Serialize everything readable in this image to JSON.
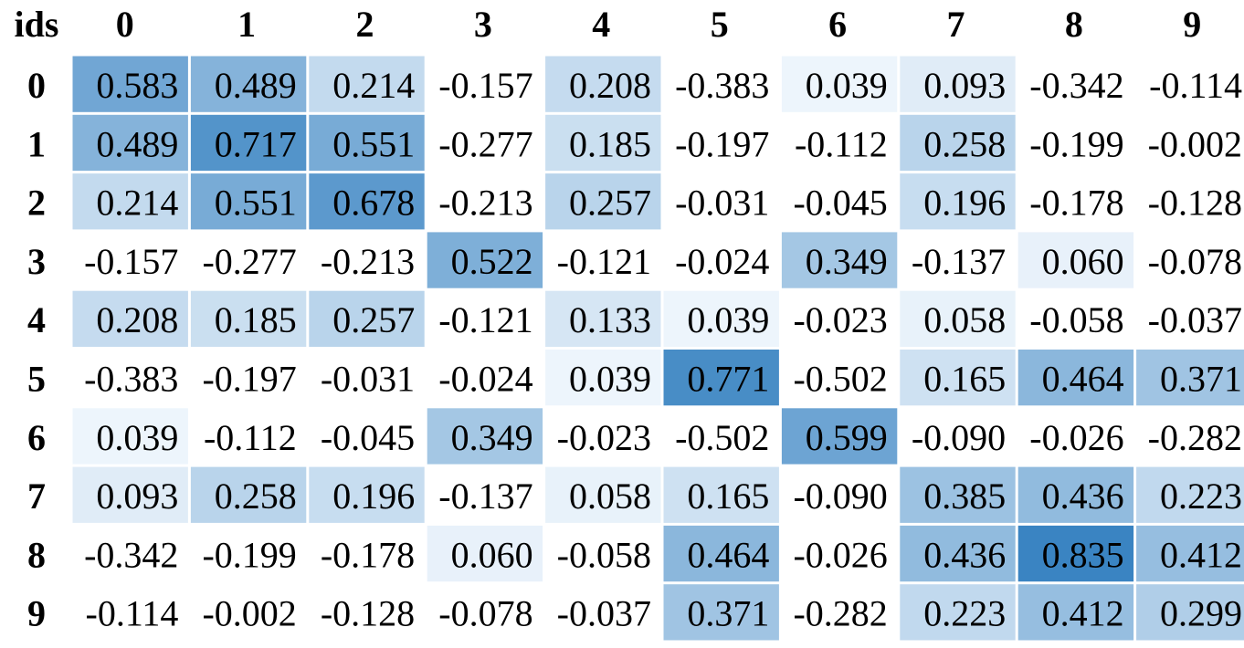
{
  "chart_data": {
    "type": "heatmap",
    "corner_label": "ids",
    "columns": [
      "0",
      "1",
      "2",
      "3",
      "4",
      "5",
      "6",
      "7",
      "8",
      "9"
    ],
    "rows": [
      "0",
      "1",
      "2",
      "3",
      "4",
      "5",
      "6",
      "7",
      "8",
      "9"
    ],
    "values": [
      [
        "0.583",
        "0.489",
        "0.214",
        "-0.157",
        "0.208",
        "-0.383",
        "0.039",
        "0.093",
        "-0.342",
        "-0.114"
      ],
      [
        "0.489",
        "0.717",
        "0.551",
        "-0.277",
        "0.185",
        "-0.197",
        "-0.112",
        "0.258",
        "-0.199",
        "-0.002"
      ],
      [
        "0.214",
        "0.551",
        "0.678",
        "-0.213",
        "0.257",
        "-0.031",
        "-0.045",
        "0.196",
        "-0.178",
        "-0.128"
      ],
      [
        "-0.157",
        "-0.277",
        "-0.213",
        "0.522",
        "-0.121",
        "-0.024",
        "0.349",
        "-0.137",
        "0.060",
        "-0.078"
      ],
      [
        "0.208",
        "0.185",
        "0.257",
        "-0.121",
        "0.133",
        "0.039",
        "-0.023",
        "0.058",
        "-0.058",
        "-0.037"
      ],
      [
        "-0.383",
        "-0.197",
        "-0.031",
        "-0.024",
        "0.039",
        "0.771",
        "-0.502",
        "0.165",
        "0.464",
        "0.371"
      ],
      [
        "0.039",
        "-0.112",
        "-0.045",
        "0.349",
        "-0.023",
        "-0.502",
        "0.599",
        "-0.090",
        "-0.026",
        "-0.282"
      ],
      [
        "0.093",
        "0.258",
        "0.196",
        "-0.137",
        "0.058",
        "0.165",
        "-0.090",
        "0.385",
        "0.436",
        "0.223"
      ],
      [
        "-0.342",
        "-0.199",
        "-0.178",
        "0.060",
        "-0.058",
        "0.464",
        "-0.026",
        "0.436",
        "0.835",
        "0.412"
      ],
      [
        "-0.114",
        "-0.002",
        "-0.128",
        "-0.078",
        "-0.037",
        "0.371",
        "-0.282",
        "0.223",
        "0.412",
        "0.299"
      ]
    ],
    "color_scale": {
      "min_value": 0,
      "max_value": 0.835,
      "low_color": "#f7fbff",
      "high_color": "#3a84c2",
      "negative_color": "#ffffff"
    },
    "grid": false,
    "legend": "none"
  }
}
